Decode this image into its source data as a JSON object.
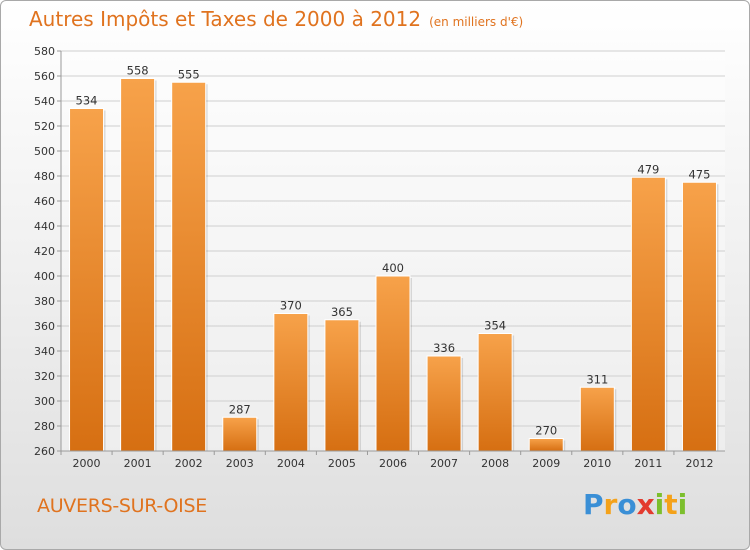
{
  "header": {
    "title": "Autres Impôts et Taxes de 2000 à 2012",
    "subtitle": "(en milliers d'€)"
  },
  "footer": {
    "commune": "AUVERS-SUR-OISE",
    "logo_text": "Proxiti",
    "logo_letters": [
      {
        "char": "P",
        "color": "#3a8fd6"
      },
      {
        "char": "r",
        "color": "#f4a21a"
      },
      {
        "char": "o",
        "color": "#3a8fd6"
      },
      {
        "char": "x",
        "color": "#e33b2f"
      },
      {
        "char": "i",
        "color": "#7cbf2d"
      },
      {
        "char": "t",
        "color": "#f4a21a"
      },
      {
        "char": "i",
        "color": "#7cbf2d"
      }
    ]
  },
  "colors": {
    "accent": "#e0731f",
    "bar_top": "#f7a24a",
    "bar_bottom": "#d66f12",
    "grid": "#cfcfcf"
  },
  "chart_data": {
    "type": "bar",
    "categories": [
      "2000",
      "2001",
      "2002",
      "2003",
      "2004",
      "2005",
      "2006",
      "2007",
      "2008",
      "2009",
      "2010",
      "2011",
      "2012"
    ],
    "values": [
      534,
      558,
      555,
      287,
      370,
      365,
      400,
      336,
      354,
      270,
      311,
      479,
      475
    ],
    "title": "Autres Impôts et Taxes de 2000 à 2012",
    "ylim": [
      260,
      580
    ],
    "yticks": [
      260,
      280,
      300,
      320,
      340,
      360,
      380,
      400,
      420,
      440,
      460,
      480,
      500,
      520,
      540,
      560,
      580
    ],
    "grid": true,
    "data_labels": true
  }
}
